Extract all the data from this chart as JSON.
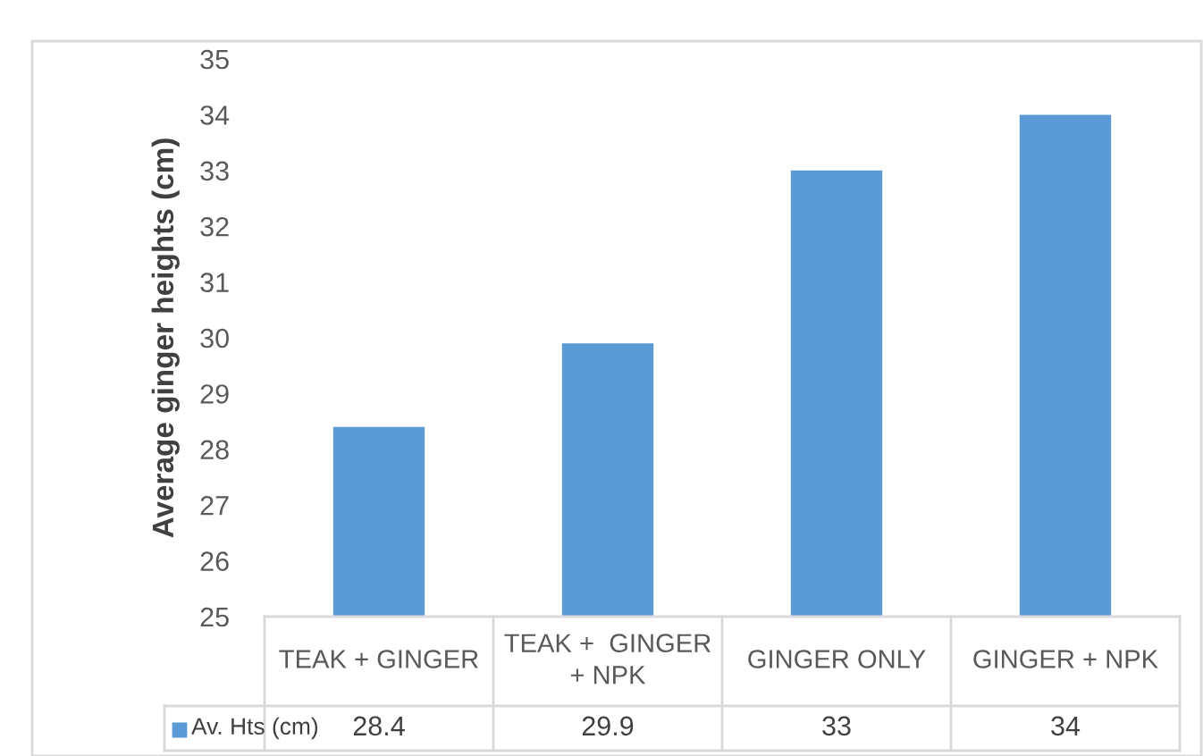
{
  "chart_data": {
    "type": "bar",
    "ylabel": "Average ginger heights (cm)",
    "categories": [
      "TEAK + GINGER",
      "TEAK +  GINGER\n+ NPK",
      "GINGER ONLY",
      "GINGER + NPK"
    ],
    "series": [
      {
        "name": "Av. Hts (cm)",
        "color": "#5b9bd5",
        "values": [
          28.4,
          29.9,
          33,
          34
        ]
      }
    ],
    "ylim": [
      25,
      35
    ],
    "yticks": [
      25,
      26,
      27,
      28,
      29,
      30,
      31,
      32,
      33,
      34,
      35
    ],
    "data_labels": true
  }
}
